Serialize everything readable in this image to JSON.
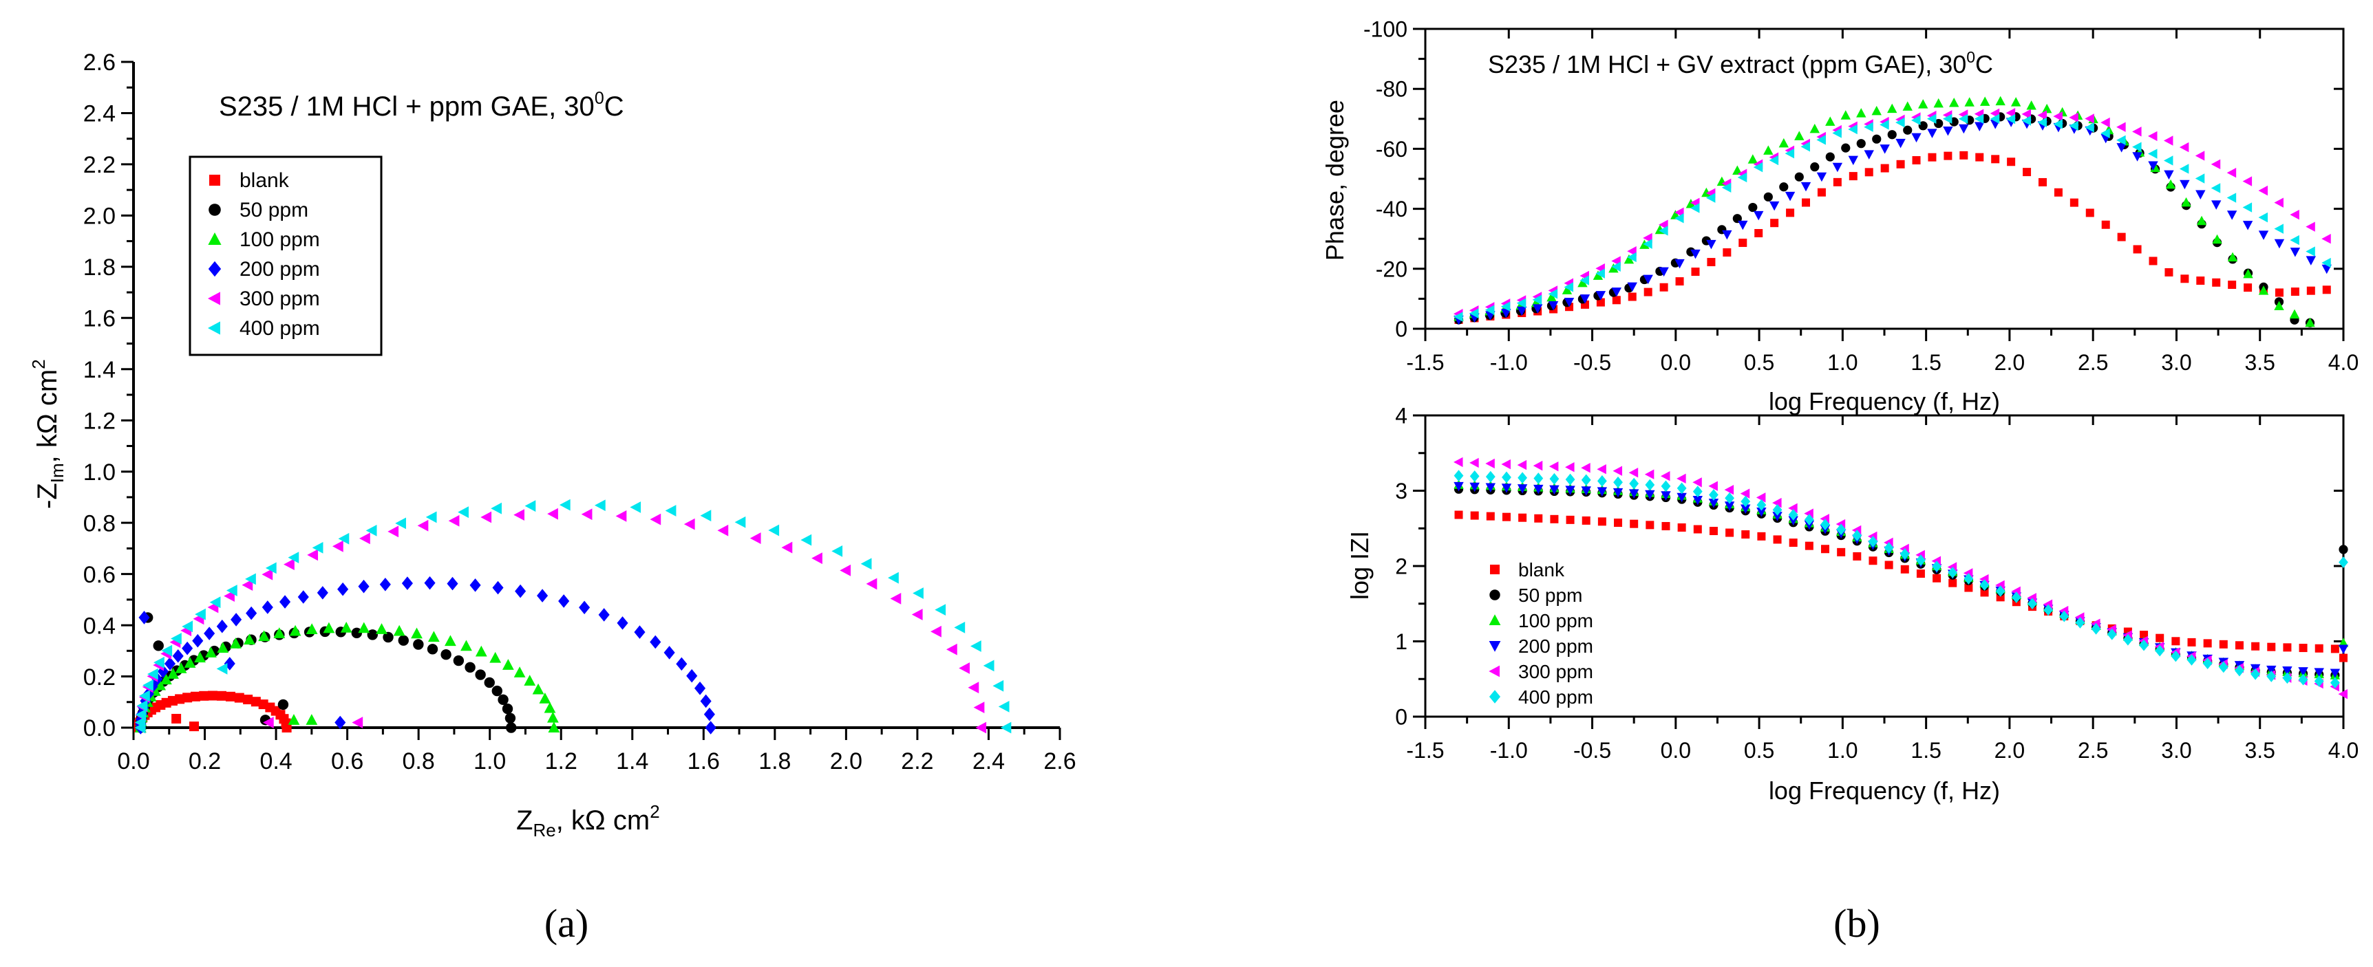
{
  "panel_labels": {
    "a": "(a)",
    "b": "(b)"
  },
  "nyquist": {
    "title_pre": "S235 / 1M HCl +  ppm GAE, 30",
    "title_sup": "0",
    "title_post": "C",
    "xlabel_main": "Z",
    "xlabel_sub": "Re",
    "xlabel_rest": ", kΩ cm",
    "xlabel_sup": "2",
    "ylabel_main": "-Z",
    "ylabel_sub": "Im",
    "ylabel_rest": ", kΩ cm",
    "ylabel_sup": "2"
  },
  "phase": {
    "title_pre": "S235 / 1M HCl + GV extract (ppm GAE), 30",
    "title_sup": "0",
    "title_post": "C",
    "xlabel": "log Frequency (f, Hz)",
    "ylabel": "Phase, degree"
  },
  "modulus": {
    "xlabel": "log Frequency (f, Hz)",
    "ylabel": "log IZI"
  },
  "series_style": [
    {
      "name": "blank",
      "color": "#ff0000",
      "marker": "square"
    },
    {
      "name": " 50 ppm",
      "color": "#000000",
      "marker": "circle"
    },
    {
      "name": "100 ppm",
      "color": "#00ee00",
      "marker": "triangle-up"
    },
    {
      "name": "200 ppm",
      "color": "#0000ff",
      "marker": "diamond"
    },
    {
      "name": "300 ppm",
      "color": "#ff00ff",
      "marker": "triangle-left"
    },
    {
      "name": "400 ppm",
      "color": "#00e5ee",
      "marker": "triangle-left"
    }
  ],
  "chart_data": [
    {
      "type": "scatter",
      "id": "nyquist",
      "title": "S235 / 1M HCl +  ppm GAE, 300C",
      "xlabel": "ZRe, kΩ cm2",
      "ylabel": "-ZIm, kΩ cm2",
      "xlim": [
        0.0,
        2.6
      ],
      "ylim": [
        0.0,
        2.6
      ],
      "xticks": [
        0.0,
        0.2,
        0.4,
        0.6,
        0.8,
        1.0,
        1.2,
        1.4,
        1.6,
        1.8,
        2.0,
        2.2,
        2.4,
        2.6
      ],
      "yticks": [
        0.0,
        0.2,
        0.4,
        0.6,
        0.8,
        1.0,
        1.2,
        1.4,
        1.6,
        1.8,
        2.0,
        2.2,
        2.4,
        2.6
      ],
      "legend": "top-left",
      "series": [
        {
          "name": "blank",
          "semicircle": {
            "rmin": 0.015,
            "rmax": 0.43,
            "height": 0.125,
            "n": 30
          },
          "extra_x": [
            0.12,
            0.17
          ],
          "extra_y": [
            0.035,
            0.005
          ]
        },
        {
          "name": " 50 ppm",
          "semicircle": {
            "rmin": 0.02,
            "rmax": 1.06,
            "height": 0.375,
            "n": 42,
            "tail": 0.6
          },
          "extra_x": [
            0.04,
            0.07,
            0.37,
            0.42
          ],
          "extra_y": [
            0.43,
            0.32,
            0.03,
            0.09
          ]
        },
        {
          "name": "100 ppm",
          "semicircle": {
            "rmin": 0.02,
            "rmax": 1.18,
            "height": 0.39,
            "n": 42,
            "tail": 0.6
          },
          "extra_x": [
            0.45,
            0.5
          ],
          "extra_y": [
            0.03,
            0.03
          ]
        },
        {
          "name": "200 ppm",
          "semicircle": {
            "rmin": 0.02,
            "rmax": 1.62,
            "height": 0.565,
            "n": 45,
            "tail": 0.75
          },
          "extra_x": [
            0.03,
            0.27,
            0.58
          ],
          "extra_y": [
            0.43,
            0.25,
            0.02
          ]
        },
        {
          "name": "300 ppm",
          "semicircle": {
            "rmin": 0.02,
            "rmax": 2.38,
            "height": 0.835,
            "n": 44,
            "tail": 0.9
          },
          "extra_x": [
            0.38,
            0.63
          ],
          "extra_y": [
            0.02,
            0.02
          ]
        },
        {
          "name": "400 ppm",
          "semicircle": {
            "rmin": 0.02,
            "rmax": 2.45,
            "height": 0.87,
            "n": 44,
            "tail": 0.95
          },
          "extra_x": [
            0.25
          ],
          "extra_y": [
            0.23
          ]
        }
      ]
    },
    {
      "type": "scatter",
      "id": "phase",
      "title": "S235 / 1M HCl + GV extract (ppm GAE), 300C",
      "xlabel": "log Frequency (f, Hz)",
      "ylabel": "Phase, degree",
      "xlim": [
        -1.5,
        4.0
      ],
      "ylim": [
        0,
        -100
      ],
      "xticks": [
        -1.5,
        -1.0,
        -0.5,
        0.0,
        0.5,
        1.0,
        1.5,
        2.0,
        2.5,
        3.0,
        3.5,
        4.0
      ],
      "yticks": [
        0,
        -20,
        -40,
        -60,
        -80,
        -100
      ],
      "x_range": [
        -1.3,
        3.9
      ],
      "points_per_series": 56,
      "series": [
        {
          "name": "blank",
          "x": [
            -1.3,
            -0.8,
            -0.3,
            0.0,
            0.5,
            1.0,
            1.5,
            1.7,
            2.0,
            2.5,
            2.8,
            3.0,
            3.3,
            3.6,
            3.9
          ],
          "y": [
            -3,
            -6,
            -10,
            -15,
            -32,
            -50,
            -57,
            -58,
            -56,
            -38,
            -25,
            -17,
            -15,
            -12,
            -13
          ]
        },
        {
          "name": " 50 ppm",
          "x": [
            -1.3,
            -0.8,
            -0.3,
            0.0,
            0.5,
            1.0,
            1.5,
            2.0,
            2.5,
            2.8,
            3.0,
            3.3,
            3.6,
            3.7,
            3.8
          ],
          "y": [
            -3,
            -7,
            -13,
            -22,
            -42,
            -60,
            -68,
            -71,
            -67,
            -58,
            -45,
            -25,
            -10,
            -3,
            -2
          ]
        },
        {
          "name": "100 ppm",
          "x": [
            -1.3,
            -0.8,
            -0.3,
            0.0,
            0.5,
            1.0,
            1.5,
            2.0,
            2.5,
            2.8,
            3.0,
            3.3,
            3.6,
            3.8
          ],
          "y": [
            -4,
            -9,
            -22,
            -38,
            -58,
            -71,
            -75,
            -76,
            -70,
            -58,
            -46,
            -26,
            -8,
            -2
          ]
        },
        {
          "name": "200 ppm",
          "x": [
            -1.3,
            -0.8,
            -0.3,
            0.0,
            0.5,
            1.0,
            1.5,
            2.0,
            2.5,
            3.0,
            3.5,
            3.9
          ],
          "y": [
            -3,
            -7,
            -13,
            -21,
            -38,
            -55,
            -65,
            -69,
            -66,
            -50,
            -32,
            -20
          ]
        },
        {
          "name": "300 ppm",
          "x": [
            -1.3,
            -0.8,
            -0.3,
            0.0,
            0.5,
            1.0,
            1.5,
            2.0,
            2.5,
            3.0,
            3.5,
            3.9
          ],
          "y": [
            -5,
            -11,
            -24,
            -38,
            -55,
            -67,
            -71,
            -72,
            -70,
            -62,
            -47,
            -30
          ]
        },
        {
          "name": "400 ppm",
          "x": [
            -1.3,
            -0.8,
            -0.3,
            0.0,
            0.5,
            1.0,
            1.5,
            2.0,
            2.5,
            3.0,
            3.5,
            3.9
          ],
          "y": [
            -4,
            -10,
            -22,
            -36,
            -54,
            -66,
            -70,
            -70,
            -67,
            -55,
            -38,
            -22
          ]
        }
      ]
    },
    {
      "type": "scatter",
      "id": "modulus",
      "xlabel": "log Frequency (f, Hz)",
      "ylabel": "log IZI",
      "xlim": [
        -1.5,
        4.0
      ],
      "ylim": [
        0,
        4
      ],
      "xticks": [
        -1.5,
        -1.0,
        -0.5,
        0.0,
        0.5,
        1.0,
        1.5,
        2.0,
        2.5,
        3.0,
        3.5,
        4.0
      ],
      "yticks": [
        0,
        1,
        2,
        3,
        4
      ],
      "legend": "bottom-left",
      "x_range": [
        -1.3,
        3.95
      ],
      "points_per_series": 56,
      "series": [
        {
          "name": "blank",
          "x": [
            -1.3,
            -0.5,
            0.0,
            0.5,
            1.0,
            1.5,
            2.0,
            2.5,
            3.0,
            3.5,
            3.95,
            4.0
          ],
          "y": [
            2.68,
            2.6,
            2.52,
            2.4,
            2.18,
            1.88,
            1.55,
            1.22,
            1.0,
            0.93,
            0.9,
            0.78
          ]
        },
        {
          "name": " 50 ppm",
          "x": [
            -1.3,
            -0.5,
            0.0,
            0.5,
            1.0,
            1.5,
            2.0,
            2.5,
            3.0,
            3.5,
            3.95,
            4.0
          ],
          "y": [
            3.02,
            2.98,
            2.9,
            2.7,
            2.4,
            2.0,
            1.62,
            1.2,
            0.82,
            0.6,
            0.55,
            2.22
          ]
        },
        {
          "name": "100 ppm",
          "x": [
            -1.3,
            -0.5,
            0.0,
            0.5,
            1.0,
            1.5,
            2.0,
            2.5,
            3.0,
            3.5,
            3.95,
            4.0
          ],
          "y": [
            3.08,
            3.02,
            2.95,
            2.75,
            2.45,
            2.05,
            1.65,
            1.22,
            0.85,
            0.62,
            0.55,
            0.98
          ]
        },
        {
          "name": "200 ppm",
          "x": [
            -1.3,
            -0.5,
            0.0,
            0.5,
            1.0,
            1.5,
            2.0,
            2.5,
            3.0,
            3.5,
            3.95,
            4.0
          ],
          "y": [
            3.06,
            3.0,
            2.93,
            2.73,
            2.43,
            2.02,
            1.63,
            1.2,
            0.85,
            0.63,
            0.58,
            0.9
          ]
        },
        {
          "name": "300 ppm",
          "x": [
            -1.3,
            -0.5,
            0.0,
            0.5,
            1.0,
            1.5,
            2.0,
            2.5,
            3.0,
            3.5,
            3.95,
            4.0
          ],
          "y": [
            3.38,
            3.3,
            3.18,
            2.92,
            2.55,
            2.12,
            1.7,
            1.25,
            0.85,
            0.58,
            0.4,
            0.3
          ]
        },
        {
          "name": "400 ppm",
          "x": [
            -1.3,
            -0.5,
            0.0,
            0.5,
            1.0,
            1.5,
            2.0,
            2.5,
            3.0,
            3.5,
            3.95,
            4.0
          ],
          "y": [
            3.2,
            3.14,
            3.05,
            2.82,
            2.48,
            2.05,
            1.62,
            1.18,
            0.8,
            0.55,
            0.45,
            2.05
          ]
        }
      ]
    }
  ]
}
